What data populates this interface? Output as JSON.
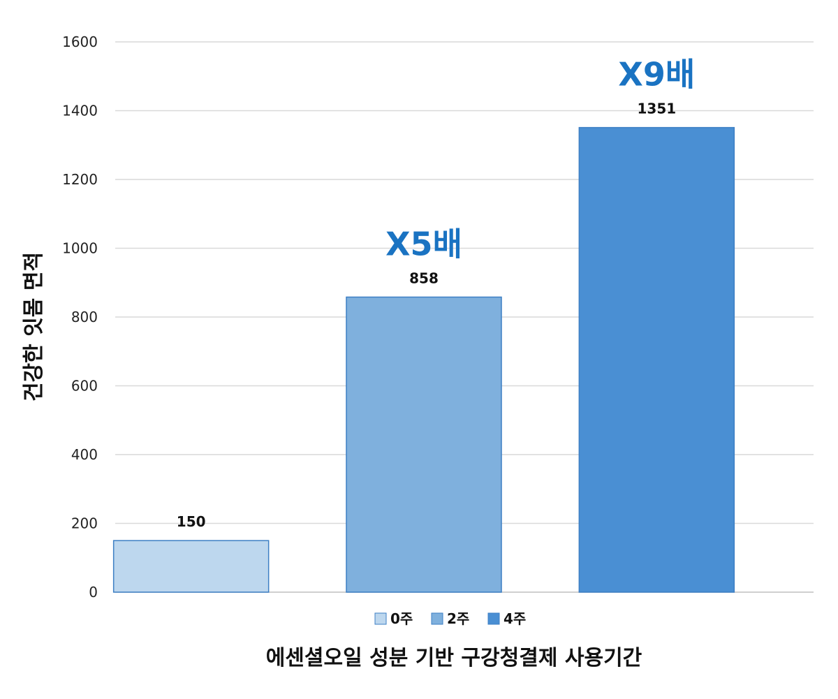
{
  "chart_data": {
    "type": "bar",
    "categories": [
      "0주",
      "2주",
      "4주"
    ],
    "values": [
      150,
      858,
      1351
    ],
    "data_labels": [
      "150",
      "858",
      "1351"
    ],
    "annotations": [
      {
        "category": "2주",
        "text": "X5배"
      },
      {
        "category": "4주",
        "text": "X9배"
      }
    ],
    "colors": [
      "#bdd7ee",
      "#7fb0dd",
      "#4a8fd3"
    ],
    "annotation_color": "#1a73c2",
    "xlabel": "에센셜오일 성분 기반 구강청결제 사용기간",
    "ylabel": "건강한 잇몸 면적",
    "ylim": [
      0,
      1600
    ],
    "yticks": [
      "0",
      "200",
      "400",
      "600",
      "800",
      "1000",
      "1200",
      "1400",
      "1600"
    ],
    "grid": true,
    "legend": {
      "position": "bottom",
      "entries": [
        "0주",
        "2주",
        "4주"
      ]
    }
  }
}
